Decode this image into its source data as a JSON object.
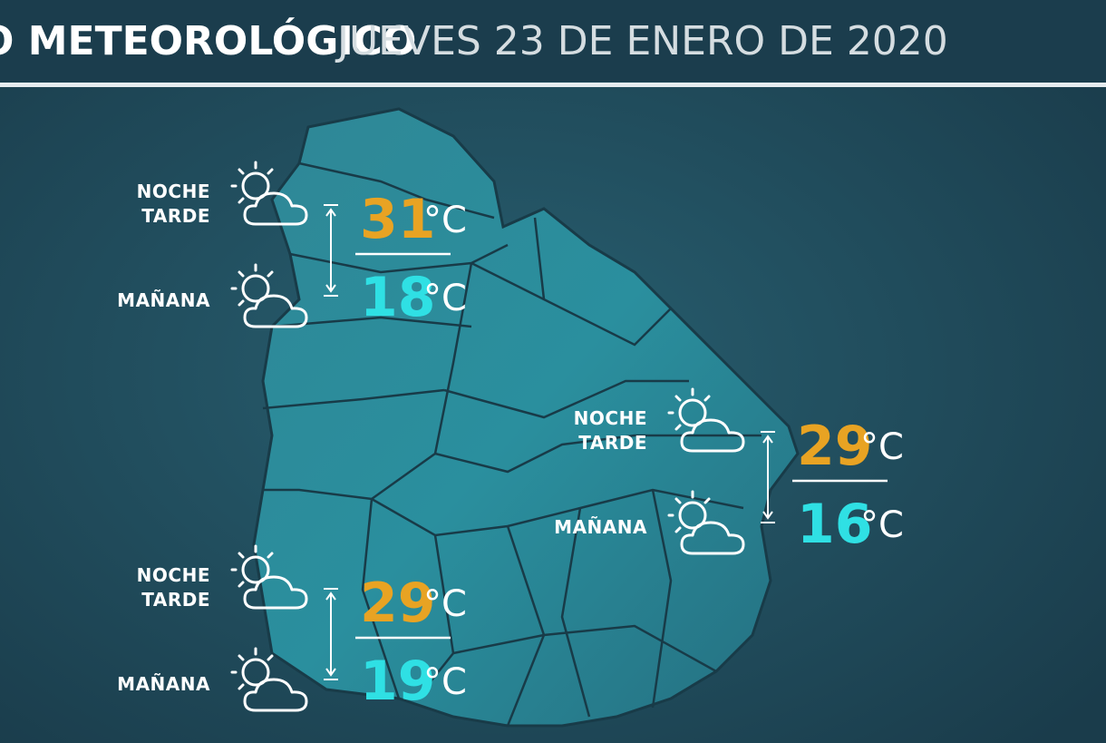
{
  "header": {
    "title": "O METEOROLÓGICO",
    "date": "JUEVES 23 DE ENERO DE 2020"
  },
  "unit": "°C",
  "regions": [
    {
      "noche": "NOCHE",
      "tarde": "TARDE",
      "manana": "MAÑANA",
      "max": 31,
      "min": 18
    },
    {
      "noche": "NOCHE",
      "tarde": "TARDE",
      "manana": "MAÑANA",
      "max": 29,
      "min": 16
    },
    {
      "noche": "NOCHE",
      "tarde": "TARDE",
      "manana": "MAÑANA",
      "max": 29,
      "min": 19
    }
  ]
}
